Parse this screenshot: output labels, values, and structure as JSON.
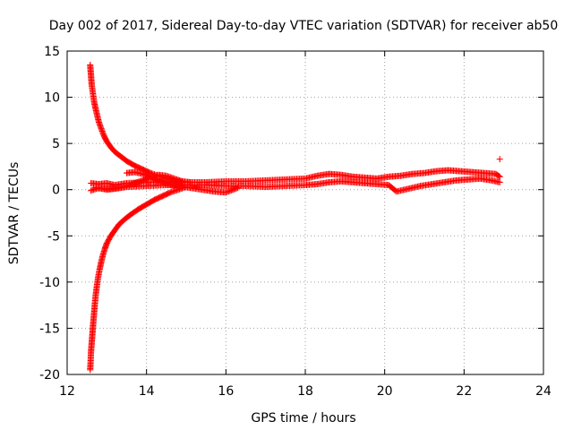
{
  "chart_data": {
    "type": "scatter",
    "title": "Day 002 of 2017, Sidereal Day-to-day VTEC variation (SDTVAR) for receiver ab50",
    "xlabel": "GPS time / hours",
    "ylabel": "SDTVAR / TECUs",
    "xlim": [
      12,
      24
    ],
    "ylim": [
      -20,
      15
    ],
    "xticks": [
      12,
      14,
      16,
      18,
      20,
      22,
      24
    ],
    "yticks": [
      -20,
      -15,
      -10,
      -5,
      0,
      5,
      10,
      15
    ],
    "grid": true,
    "marker": "+",
    "color": "#ff0000",
    "series": [
      {
        "name": "upper decaying arc",
        "x": [
          12.58,
          12.6,
          12.62,
          12.65,
          12.68,
          12.72,
          12.76,
          12.8,
          12.86,
          12.92,
          13.0,
          13.1,
          13.2,
          13.35,
          13.5,
          13.7,
          13.9,
          14.1,
          14.3,
          14.5,
          14.7,
          14.9,
          15.1
        ],
        "y": [
          13.5,
          12.4,
          11.3,
          10.4,
          9.5,
          8.7,
          8.0,
          7.3,
          6.6,
          5.9,
          5.2,
          4.6,
          4.1,
          3.6,
          3.1,
          2.6,
          2.2,
          1.8,
          1.5,
          1.2,
          1.0,
          0.9,
          0.8
        ]
      },
      {
        "name": "lower decaying arc",
        "x": [
          12.58,
          12.59,
          12.6,
          12.62,
          12.64,
          12.66,
          12.68,
          12.7,
          12.72,
          12.75,
          12.78,
          12.82,
          12.86,
          12.9,
          12.95,
          13.0,
          13.1,
          13.2,
          13.3,
          13.45,
          13.6,
          13.8,
          14.0,
          14.2,
          14.4,
          14.6,
          14.8,
          15.0
        ],
        "y": [
          -19.5,
          -18.8,
          -17.6,
          -16.5,
          -15.4,
          -14.3,
          -13.3,
          -12.3,
          -11.4,
          -10.4,
          -9.5,
          -8.6,
          -7.8,
          -7.1,
          -6.4,
          -5.8,
          -5.0,
          -4.4,
          -3.8,
          -3.2,
          -2.7,
          -2.1,
          -1.6,
          -1.1,
          -0.7,
          -0.3,
          0.0,
          0.3
        ]
      },
      {
        "name": "rising branch",
        "x": [
          12.7,
          12.9,
          13.1,
          13.3,
          13.5,
          13.7,
          13.9,
          14.1,
          14.3,
          14.5,
          14.7,
          14.9
        ],
        "y": [
          0.2,
          0.1,
          0.1,
          0.2,
          0.4,
          0.7,
          1.0,
          1.4,
          1.6,
          1.5,
          1.2,
          0.9
        ]
      },
      {
        "name": "falling branch",
        "x": [
          13.5,
          13.7,
          13.9,
          14.1,
          14.3,
          14.5,
          14.7,
          14.9
        ],
        "y": [
          1.8,
          1.9,
          1.7,
          1.4,
          1.0,
          0.6,
          0.4,
          0.5
        ]
      },
      {
        "name": "dip branch",
        "x": [
          14.5,
          14.8,
          15.1,
          15.4,
          15.7,
          16.0,
          16.3
        ],
        "y": [
          0.8,
          0.4,
          0.2,
          0.0,
          -0.2,
          -0.3,
          0.2
        ]
      },
      {
        "name": "main band upper",
        "x": [
          12.6,
          12.8,
          13.0,
          13.2,
          13.5,
          14.0,
          14.5,
          15.0,
          15.5,
          16.0,
          16.5,
          17.0,
          17.5,
          18.0,
          18.3,
          18.6,
          18.9,
          19.2,
          19.5,
          19.8,
          20.1,
          20.4,
          20.7,
          21.0,
          21.3,
          21.6,
          21.9,
          22.2,
          22.5,
          22.8,
          22.9
        ],
        "y": [
          0.7,
          0.6,
          0.7,
          0.5,
          0.7,
          0.8,
          0.9,
          0.8,
          0.8,
          0.9,
          0.9,
          1.0,
          1.1,
          1.2,
          1.5,
          1.7,
          1.6,
          1.4,
          1.3,
          1.2,
          1.4,
          1.5,
          1.7,
          1.8,
          2.0,
          2.1,
          2.0,
          1.9,
          1.8,
          1.7,
          1.4
        ]
      },
      {
        "name": "main band lower",
        "x": [
          12.6,
          12.8,
          13.0,
          13.2,
          13.5,
          14.0,
          14.5,
          15.0,
          15.5,
          16.0,
          16.5,
          17.0,
          17.5,
          18.0,
          18.3,
          18.6,
          18.9,
          19.2,
          19.5,
          19.8,
          20.1,
          20.3,
          20.6,
          20.9,
          21.2,
          21.5,
          21.8,
          22.1,
          22.4,
          22.7,
          22.9
        ],
        "y": [
          -0.1,
          0.2,
          0.0,
          0.1,
          0.3,
          0.4,
          0.5,
          0.5,
          0.5,
          0.4,
          0.4,
          0.3,
          0.4,
          0.5,
          0.6,
          0.8,
          0.9,
          0.8,
          0.7,
          0.6,
          0.5,
          -0.2,
          0.1,
          0.4,
          0.6,
          0.8,
          1.0,
          1.1,
          1.2,
          1.0,
          0.8
        ]
      },
      {
        "name": "outlier",
        "x": [
          22.9
        ],
        "y": [
          3.3
        ]
      }
    ]
  }
}
